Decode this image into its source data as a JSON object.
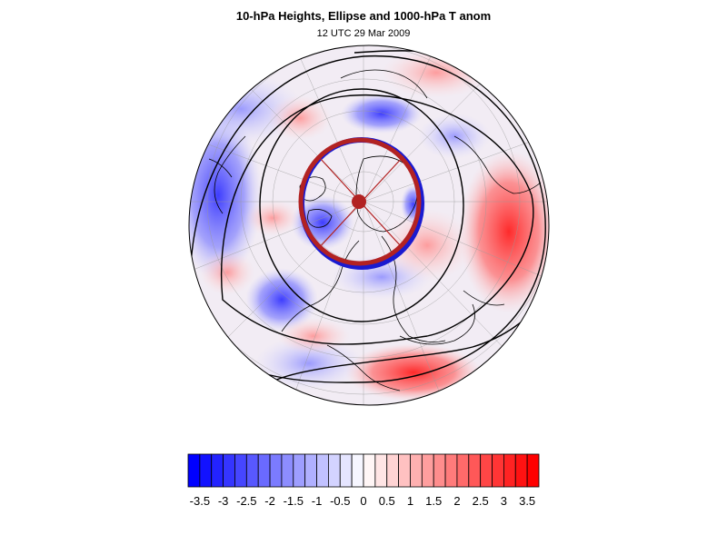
{
  "figure": {
    "title": "10-hPa Heights, Ellipse and 1000-hPa T anom",
    "subtitle": "12 UTC 29 Mar 2009"
  },
  "map": {
    "projection": "polar-stereographic",
    "hemisphere": "northern",
    "fill_field": "1000-hPa temperature anomaly",
    "contour_field": "10-hPa heights",
    "ellipse_color": "#b22222",
    "center_marker_color": "#b22222"
  },
  "colorbar": {
    "ticks": [
      "-3.5",
      "-3",
      "-2.5",
      "-2",
      "-1.5",
      "-1",
      "-0.5",
      "0",
      "0.5",
      "1",
      "1.5",
      "2",
      "2.5",
      "3",
      "3.5"
    ],
    "min": -3.75,
    "max": 3.75,
    "step": 0.25,
    "neg_color": "#0000ff",
    "mid_color": "#ffffff",
    "pos_color": "#ff0000"
  }
}
